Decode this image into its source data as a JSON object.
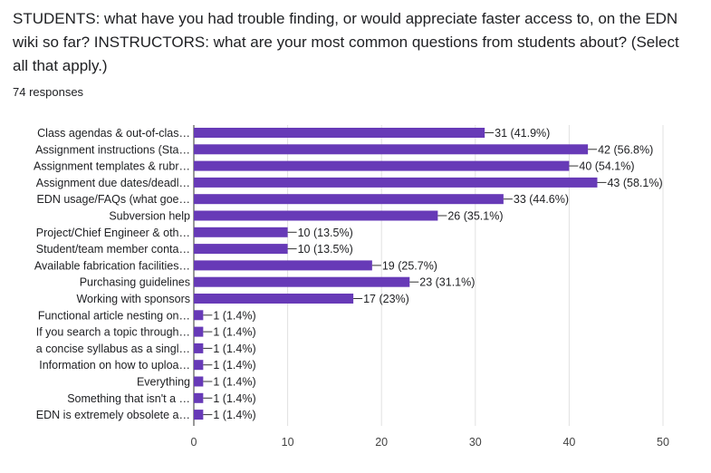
{
  "question": {
    "title": "STUDENTS: what have you had trouble finding, or would appreciate faster access to, on the EDN wiki so far? INSTRUCTORS: what are your most common questions from students about? (Select all that apply.)",
    "responses": "74 responses"
  },
  "chart_data": {
    "type": "bar",
    "orientation": "horizontal",
    "bar_color": "#673ab7",
    "categories": [
      "Class agendas & out-of-clas…",
      "Assignment instructions (Sta…",
      "Assignment templates & rubr…",
      "Assignment due dates/deadl…",
      "EDN usage/FAQs (what goe…",
      "Subversion help",
      "Project/Chief Engineer & oth…",
      "Student/team member conta…",
      "Available fabrication facilities…",
      "Purchasing guidelines",
      "Working with sponsors",
      "Functional article nesting on…",
      "If you search a topic through…",
      "a concise syllabus as a singl…",
      "Information on how to uploa…",
      "Everything",
      "Something that isn't a         …",
      "EDN is extremely obsolete a…"
    ],
    "values": [
      31,
      42,
      40,
      43,
      33,
      26,
      10,
      10,
      19,
      23,
      17,
      1,
      1,
      1,
      1,
      1,
      1,
      1
    ],
    "data_labels": [
      "31 (41.9%)",
      "42 (56.8%)",
      "40 (54.1%)",
      "43 (58.1%)",
      "33 (44.6%)",
      "26 (35.1%)",
      "10 (13.5%)",
      "10 (13.5%)",
      "19 (25.7%)",
      "23 (31.1%)",
      "17 (23%)",
      "1 (1.4%)",
      "1 (1.4%)",
      "1 (1.4%)",
      "1 (1.4%)",
      "1 (1.4%)",
      "1 (1.4%)",
      "1 (1.4%)"
    ],
    "xlim": [
      0,
      50
    ],
    "x_ticks": [
      0,
      10,
      20,
      30,
      40,
      50
    ],
    "x_tick_labels": [
      "0",
      "10",
      "20",
      "30",
      "40",
      "50"
    ],
    "grid": true,
    "legend": "none"
  }
}
